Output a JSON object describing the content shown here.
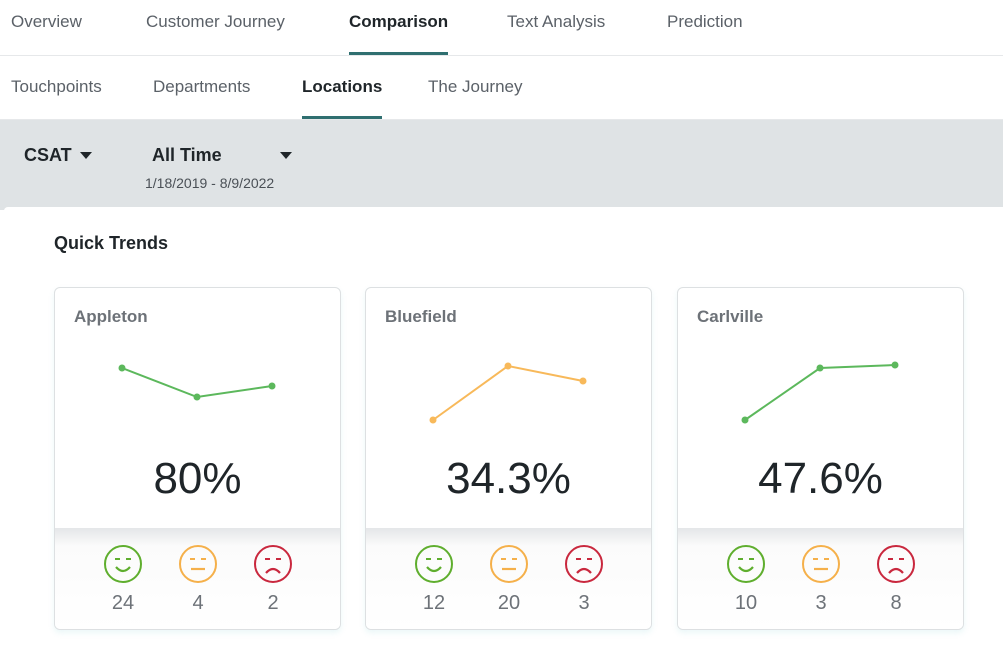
{
  "tabs": [
    {
      "label": "Overview"
    },
    {
      "label": "Customer Journey"
    },
    {
      "label": "Comparison",
      "active": true
    },
    {
      "label": "Text Analysis"
    },
    {
      "label": "Prediction"
    }
  ],
  "subtabs": [
    {
      "label": "Touchpoints"
    },
    {
      "label": "Departments"
    },
    {
      "label": "Locations",
      "active": true
    },
    {
      "label": "The Journey"
    }
  ],
  "filters": {
    "metric": "CSAT",
    "period": "All Time",
    "date_range": "1/18/2019 - 8/9/2022"
  },
  "section_title": "Quick Trends",
  "colors": {
    "positive": "#5cb85c",
    "neutral": "#f5b04a",
    "negative": "#c9283e",
    "accent": "#2f6f70"
  },
  "cards": [
    {
      "name": "Appleton",
      "value": "80%",
      "trend": [
        73,
        44,
        55
      ],
      "trend_color": "#5cb85c",
      "happy": "24",
      "neutral": "4",
      "sad": "2"
    },
    {
      "name": "Bluefield",
      "value": "34.3%",
      "trend": [
        21,
        75,
        60
      ],
      "trend_color": "#f8b95a",
      "happy": "12",
      "neutral": "20",
      "sad": "3"
    },
    {
      "name": "Carlville",
      "value": "47.6%",
      "trend": [
        21,
        73,
        76
      ],
      "trend_color": "#5cb85c",
      "happy": "10",
      "neutral": "3",
      "sad": "8"
    }
  ]
}
